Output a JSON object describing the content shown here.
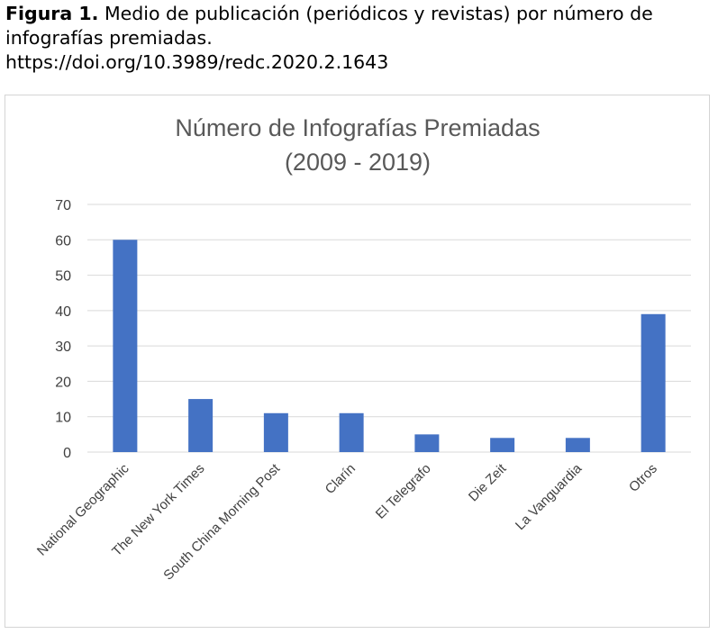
{
  "caption": {
    "label": "Figura 1.",
    "text": " Medio de publicación (periódicos y revistas) por número de infografías premiadas.",
    "doi": "https://doi.org/10.3989/redc.2020.2.1643"
  },
  "chart_data": {
    "type": "bar",
    "title_line1": "Número de Infografías Premiadas",
    "title_line2": "(2009 - 2019)",
    "categories": [
      "National Geographic",
      "The New York Times",
      "South China Morning Post",
      "Clarín",
      "El Telegrafo",
      "Die Zeit",
      "La Vanguardia",
      "Otros"
    ],
    "values": [
      60,
      15,
      11,
      11,
      5,
      4,
      4,
      39
    ],
    "ylim": [
      0,
      70
    ],
    "yticks": [
      0,
      10,
      20,
      30,
      40,
      50,
      60,
      70
    ],
    "grid": true,
    "bar_color": "#4472c4",
    "grid_color": "#d9d9d9"
  }
}
